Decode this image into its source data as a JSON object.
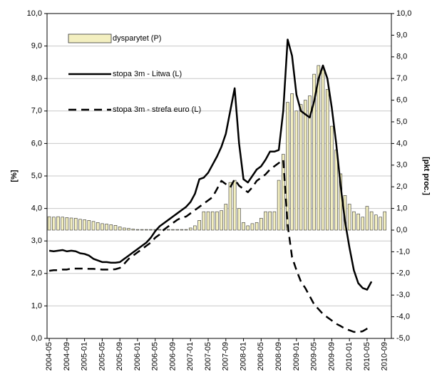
{
  "chart_data": {
    "type": "combo",
    "categories": [
      "2004-05",
      null,
      null,
      null,
      "2004-09",
      null,
      null,
      null,
      "2005-01",
      null,
      null,
      null,
      "2005-05",
      null,
      null,
      null,
      "2005-09",
      null,
      null,
      null,
      "2006-01",
      null,
      null,
      null,
      "2006-05",
      null,
      null,
      null,
      "2006-09",
      null,
      null,
      null,
      "2007-01",
      null,
      null,
      null,
      "2007-05",
      null,
      null,
      null,
      "2007-09",
      null,
      null,
      null,
      "2008-01",
      null,
      null,
      null,
      "2008-05",
      null,
      null,
      null,
      "2008-09",
      null,
      null,
      null,
      "2009-01",
      null,
      null,
      null,
      "2009-05",
      null,
      null,
      null,
      "2009-09",
      null,
      null,
      null,
      "2010-01",
      null,
      null,
      null,
      "2010-05",
      null,
      null,
      null,
      "2010-09",
      null
    ],
    "y_label": "[%]",
    "y2_label": "[pkt proc.]",
    "ylim": [
      0,
      10
    ],
    "yticks": [
      {
        "value": 0,
        "label": "0,0"
      },
      {
        "value": 1,
        "label": "1,0"
      },
      {
        "value": 2,
        "label": "2,0"
      },
      {
        "value": 3,
        "label": "3,0"
      },
      {
        "value": 4,
        "label": "4,0"
      },
      {
        "value": 5,
        "label": "5,0"
      },
      {
        "value": 6,
        "label": "6,0"
      },
      {
        "value": 7,
        "label": "7,0"
      },
      {
        "value": 8,
        "label": "8,0"
      },
      {
        "value": 9,
        "label": "9,0"
      },
      {
        "value": 10,
        "label": "10,0"
      }
    ],
    "y2lim": [
      -5,
      10
    ],
    "y2ticks": [
      {
        "value": -5,
        "label": "-5,0"
      },
      {
        "value": -4,
        "label": "-4,0"
      },
      {
        "value": -3,
        "label": "-3,0"
      },
      {
        "value": -2,
        "label": "-2,0"
      },
      {
        "value": -1,
        "label": "-1,0"
      },
      {
        "value": 0,
        "label": "0,0"
      },
      {
        "value": 1,
        "label": "1,0"
      },
      {
        "value": 2,
        "label": "2,0"
      },
      {
        "value": 3,
        "label": "3,0"
      },
      {
        "value": 4,
        "label": "4,0"
      },
      {
        "value": 5,
        "label": "5,0"
      },
      {
        "value": 6,
        "label": "6,0"
      },
      {
        "value": 7,
        "label": "7,0"
      },
      {
        "value": 8,
        "label": "8,0"
      },
      {
        "value": 9,
        "label": "9,0"
      },
      {
        "value": 10,
        "label": "10,0"
      }
    ],
    "grid": true,
    "legend": "upper left",
    "series": [
      {
        "name": "dysparytet (P)",
        "type": "bar",
        "axis": "y2",
        "color": "#f3efc0",
        "values": [
          0.62,
          0.6,
          0.62,
          0.6,
          0.58,
          0.56,
          0.55,
          0.5,
          0.48,
          0.45,
          0.4,
          0.35,
          0.3,
          0.28,
          0.25,
          0.22,
          0.15,
          0.1,
          0.08,
          0.05,
          0.03,
          0.03,
          0.03,
          0.03,
          0.03,
          0.03,
          0.03,
          0.03,
          0.03,
          0.03,
          0.03,
          0.03,
          0.1,
          0.2,
          0.45,
          0.85,
          0.85,
          0.85,
          0.85,
          0.9,
          1.2,
          2.2,
          2.3,
          1.0,
          0.35,
          0.2,
          0.3,
          0.35,
          0.55,
          0.85,
          0.85,
          0.85,
          2.3,
          3.5,
          5.9,
          6.3,
          5.5,
          5.8,
          6.0,
          6.2,
          7.2,
          7.6,
          7.4,
          6.5,
          4.8,
          3.7,
          2.6,
          1.6,
          1.2,
          0.85,
          0.75,
          0.6,
          1.1,
          0.85,
          0.7,
          0.6,
          0.85,
          null
        ]
      },
      {
        "name": "stopa 3m - Litwa (L)",
        "type": "line",
        "axis": "y",
        "color": "#000000",
        "line_style": "solid",
        "values": [
          2.7,
          2.68,
          2.7,
          2.72,
          2.68,
          2.7,
          2.68,
          2.62,
          2.6,
          2.55,
          2.45,
          2.4,
          2.35,
          2.35,
          2.33,
          2.33,
          2.35,
          2.45,
          2.55,
          2.65,
          2.75,
          2.85,
          2.95,
          3.1,
          3.3,
          3.45,
          3.55,
          3.65,
          3.75,
          3.85,
          3.95,
          4.05,
          4.2,
          4.45,
          4.9,
          4.95,
          5.1,
          5.35,
          5.6,
          5.9,
          6.3,
          7.0,
          7.7,
          6.0,
          4.9,
          4.8,
          5.0,
          5.2,
          5.3,
          5.5,
          5.75,
          5.75,
          5.8,
          7.0,
          9.2,
          8.7,
          7.5,
          7.0,
          6.9,
          6.8,
          7.3,
          8.0,
          8.4,
          8.0,
          7.1,
          6.0,
          4.7,
          3.6,
          2.8,
          2.1,
          1.7,
          1.55,
          1.5,
          1.75,
          null,
          null,
          null,
          null
        ]
      },
      {
        "name": "stopa 3m - strefa euro (L)",
        "type": "line",
        "axis": "y",
        "color": "#000000",
        "line_style": "dashed",
        "values": [
          2.08,
          2.1,
          2.1,
          2.12,
          2.12,
          2.15,
          2.15,
          2.15,
          2.15,
          2.14,
          2.14,
          2.13,
          2.12,
          2.12,
          2.12,
          2.13,
          2.17,
          2.3,
          2.45,
          2.55,
          2.65,
          2.75,
          2.85,
          2.95,
          3.1,
          3.2,
          3.35,
          3.45,
          3.55,
          3.65,
          3.72,
          3.75,
          3.85,
          3.95,
          4.05,
          4.15,
          4.25,
          4.35,
          4.6,
          4.85,
          4.75,
          4.65,
          4.9,
          4.7,
          4.6,
          4.5,
          4.65,
          4.85,
          4.95,
          5.05,
          5.2,
          5.3,
          5.4,
          5.5,
          3.5,
          2.5,
          2.1,
          1.75,
          1.55,
          1.3,
          1.05,
          0.9,
          0.75,
          0.65,
          0.55,
          0.45,
          0.38,
          0.3,
          0.25,
          0.2,
          0.2,
          0.22,
          0.3,
          0.35,
          null,
          null,
          null,
          null
        ]
      }
    ]
  }
}
